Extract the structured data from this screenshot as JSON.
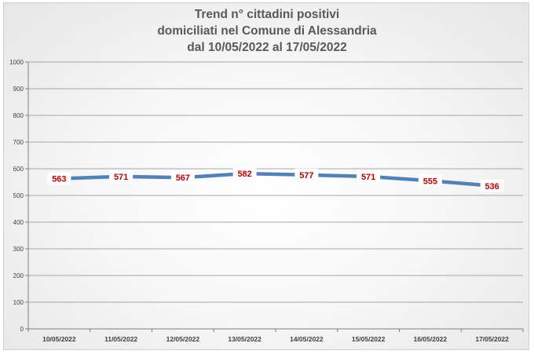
{
  "chart_data": {
    "type": "line",
    "title_lines": [
      "Trend n° cittadini positivi",
      "domiciliati nel Comune di Alessandria",
      "dal 10/05/2022 al 17/05/2022"
    ],
    "categories": [
      "10/05/2022",
      "11/05/2022",
      "12/05/2022",
      "13/05/2022",
      "14/05/2022",
      "15/05/2022",
      "16/05/2022",
      "17/05/2022"
    ],
    "values": [
      563,
      571,
      567,
      582,
      577,
      571,
      555,
      536
    ],
    "ylim": [
      0,
      1000
    ],
    "yticks": [
      0,
      100,
      200,
      300,
      400,
      500,
      600,
      700,
      800,
      900,
      1000
    ],
    "grid": true,
    "line_color": "#4f81bd",
    "label_color": "#c00000"
  }
}
